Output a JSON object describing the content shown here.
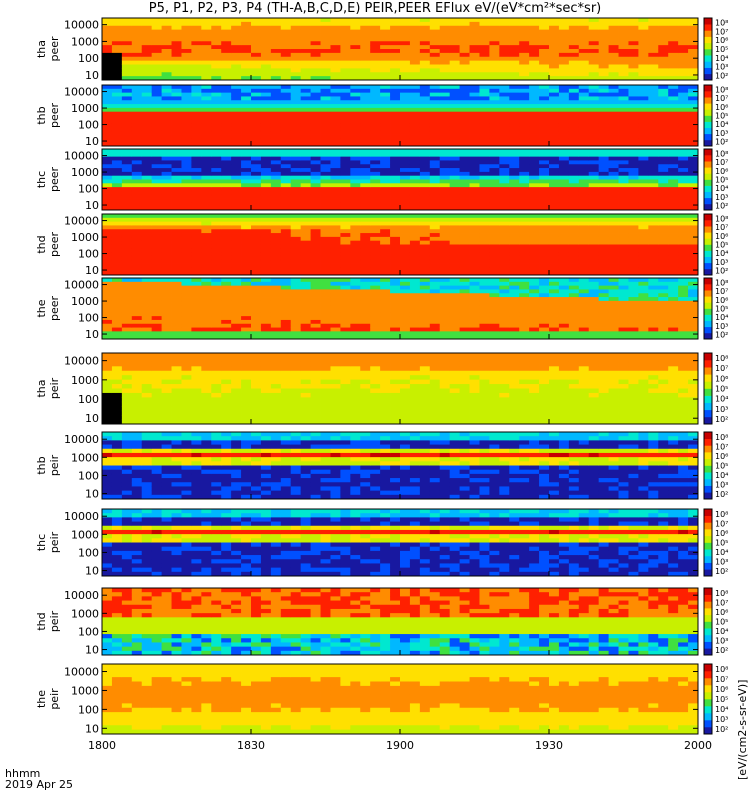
{
  "title": "P5, P1, P2, P3, P4 (TH-A,B,C,D,E) PEIR,PEER EFlux eV/(eV*cm²*sec*sr)",
  "footer": {
    "line1": "hhmm",
    "line2": "2019 Apr 25"
  },
  "units_label": "[eV/(cm2-s-sr-eV)]",
  "colors": {
    "background": "#ffffff",
    "text": "#000000",
    "gap_black": "#000000"
  },
  "chart_data": {
    "type": "heatmap",
    "x_axis": {
      "ticks": [
        "1800",
        "1830",
        "1900",
        "1930",
        "2000"
      ],
      "range": [
        "18:00",
        "20:00"
      ],
      "unit": "hhmm"
    },
    "y_axis": {
      "scale": "log",
      "ticks": [
        "10",
        "100",
        "1000",
        "10000"
      ],
      "range": [
        5,
        25000
      ],
      "unit": "eV"
    },
    "colorbar": {
      "scale": "log",
      "ticks": [
        "10²",
        "10³",
        "10⁴",
        "10⁵",
        "10⁶",
        "10⁷",
        "10⁸"
      ],
      "colormap": [
        "#1818a0",
        "#0050ff",
        "#00b8ff",
        "#00e8d0",
        "#40e040",
        "#c8f000",
        "#ffe000",
        "#ff8c00",
        "#ff2000",
        "#c80000"
      ]
    },
    "panels": [
      {
        "probe": "tha",
        "species": "peer",
        "ylabel1": "tha",
        "ylabel2": "peer",
        "pattern": "upper_band"
      },
      {
        "probe": "thb",
        "species": "peer",
        "ylabel1": "thb",
        "ylabel2": "peer",
        "pattern": "low_red"
      },
      {
        "probe": "thc",
        "species": "peer",
        "ylabel1": "thc",
        "ylabel2": "peer",
        "pattern": "low_red_noisy"
      },
      {
        "probe": "thd",
        "species": "peer",
        "ylabel1": "thd",
        "ylabel2": "peer",
        "pattern": "broad_red"
      },
      {
        "probe": "the",
        "species": "peer",
        "ylabel1": "the",
        "ylabel2": "peer",
        "pattern": "broad_red_decay"
      },
      {
        "probe": "tha",
        "species": "peir",
        "ylabel1": "tha",
        "ylabel2": "peir",
        "pattern": "ion_yellow"
      },
      {
        "probe": "thb",
        "species": "peir",
        "ylabel1": "thb",
        "ylabel2": "peir",
        "pattern": "ion_band_1000"
      },
      {
        "probe": "thc",
        "species": "peir",
        "ylabel1": "thc",
        "ylabel2": "peir",
        "pattern": "ion_band_1000"
      },
      {
        "probe": "thd",
        "species": "peir",
        "ylabel1": "thd",
        "ylabel2": "peir",
        "pattern": "ion_red_top"
      },
      {
        "probe": "the",
        "species": "peir",
        "ylabel1": "the",
        "ylabel2": "peir",
        "pattern": "ion_yellow_smooth"
      }
    ]
  }
}
